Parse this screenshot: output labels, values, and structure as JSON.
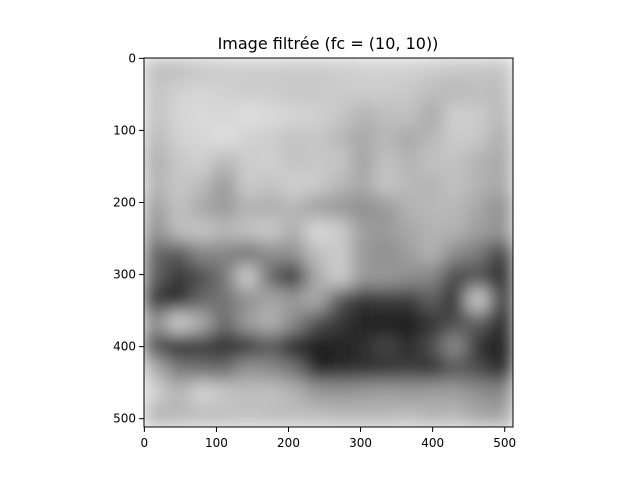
{
  "chart_data": {
    "type": "heatmap",
    "title": "Image filtrée (fc = (10, 10))",
    "xlabel": "",
    "ylabel": "",
    "colormap": "gray",
    "xlim": [
      -0.5,
      511.5
    ],
    "ylim": [
      511.5,
      -0.5
    ],
    "x_ticks": [
      0,
      100,
      200,
      300,
      400,
      500
    ],
    "y_ticks": [
      0,
      100,
      200,
      300,
      400,
      500
    ],
    "x_tick_labels": [
      "0",
      "100",
      "200",
      "300",
      "400",
      "500"
    ],
    "y_tick_labels": [
      "0",
      "100",
      "200",
      "300",
      "400",
      "500"
    ],
    "grid": false,
    "image_grid": {
      "rows": 16,
      "cols": 16,
      "cell_size_data_units": 32,
      "values": [
        [
          0.74,
          0.75,
          0.78,
          0.8,
          0.8,
          0.8,
          0.8,
          0.8,
          0.8,
          0.82,
          0.82,
          0.82,
          0.8,
          0.78,
          0.78,
          0.76
        ],
        [
          0.76,
          0.82,
          0.84,
          0.82,
          0.8,
          0.8,
          0.78,
          0.78,
          0.8,
          0.8,
          0.8,
          0.78,
          0.74,
          0.72,
          0.74,
          0.74
        ],
        [
          0.76,
          0.84,
          0.86,
          0.84,
          0.88,
          0.86,
          0.84,
          0.82,
          0.78,
          0.7,
          0.74,
          0.76,
          0.66,
          0.82,
          0.8,
          0.72
        ],
        [
          0.72,
          0.82,
          0.84,
          0.88,
          0.82,
          0.8,
          0.76,
          0.78,
          0.72,
          0.66,
          0.72,
          0.66,
          0.72,
          0.8,
          0.78,
          0.68
        ],
        [
          0.68,
          0.78,
          0.82,
          0.72,
          0.8,
          0.82,
          0.76,
          0.78,
          0.78,
          0.64,
          0.76,
          0.7,
          0.76,
          0.76,
          0.7,
          0.66
        ],
        [
          0.7,
          0.78,
          0.74,
          0.6,
          0.8,
          0.76,
          0.82,
          0.8,
          0.72,
          0.66,
          0.78,
          0.72,
          0.7,
          0.76,
          0.7,
          0.66
        ],
        [
          0.62,
          0.76,
          0.66,
          0.6,
          0.7,
          0.68,
          0.72,
          0.62,
          0.6,
          0.56,
          0.6,
          0.7,
          0.72,
          0.72,
          0.66,
          0.56
        ],
        [
          0.56,
          0.74,
          0.78,
          0.72,
          0.76,
          0.8,
          0.68,
          0.86,
          0.8,
          0.62,
          0.6,
          0.66,
          0.7,
          0.7,
          0.62,
          0.58
        ],
        [
          0.4,
          0.34,
          0.52,
          0.52,
          0.44,
          0.55,
          0.56,
          0.74,
          0.8,
          0.6,
          0.56,
          0.62,
          0.7,
          0.54,
          0.48,
          0.24
        ],
        [
          0.38,
          0.22,
          0.3,
          0.46,
          0.82,
          0.4,
          0.14,
          0.66,
          0.82,
          0.6,
          0.6,
          0.56,
          0.52,
          0.28,
          0.3,
          0.16
        ],
        [
          0.22,
          0.14,
          0.4,
          0.46,
          0.56,
          0.66,
          0.6,
          0.68,
          0.32,
          0.2,
          0.24,
          0.22,
          0.38,
          0.16,
          0.82,
          0.2
        ],
        [
          0.54,
          0.82,
          0.68,
          0.4,
          0.62,
          0.7,
          0.54,
          0.3,
          0.22,
          0.14,
          0.1,
          0.12,
          0.2,
          0.3,
          0.38,
          0.14
        ],
        [
          0.3,
          0.14,
          0.22,
          0.16,
          0.2,
          0.34,
          0.1,
          0.12,
          0.14,
          0.18,
          0.28,
          0.16,
          0.3,
          0.56,
          0.18,
          0.12
        ],
        [
          0.68,
          0.48,
          0.44,
          0.42,
          0.58,
          0.54,
          0.46,
          0.14,
          0.16,
          0.18,
          0.2,
          0.24,
          0.2,
          0.34,
          0.3,
          0.14
        ],
        [
          0.82,
          0.7,
          0.84,
          0.78,
          0.74,
          0.76,
          0.7,
          0.6,
          0.58,
          0.6,
          0.62,
          0.6,
          0.62,
          0.62,
          0.56,
          0.52
        ],
        [
          0.7,
          0.72,
          0.74,
          0.74,
          0.76,
          0.74,
          0.74,
          0.74,
          0.72,
          0.72,
          0.72,
          0.74,
          0.7,
          0.72,
          0.66,
          0.64
        ]
      ]
    }
  }
}
